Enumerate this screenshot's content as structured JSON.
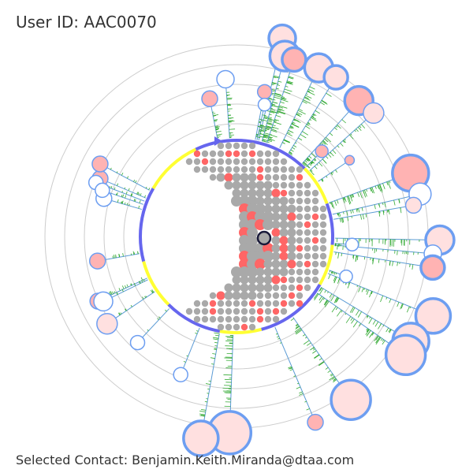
{
  "header": {
    "user_id": "User ID: AAC0070"
  },
  "footer": {
    "selected_contact": "Selected Contact: Benjamin.Keith.Miranda@dtaa.com"
  },
  "colors": {
    "ring": "#cccccc",
    "spoke": "#5b9bd5",
    "tick": "#33aa33",
    "node_stroke": "#6d9ef1",
    "node_fill": "#ffe0e0",
    "node_fill_dark": "#ffb3b3",
    "arc_blue": "#6666ee",
    "arc_yellow": "#ffff33",
    "dot_gray": "#a9a9a9",
    "dot_red": "#ff6666",
    "selected_stroke": "#1a1a3a"
  }
}
